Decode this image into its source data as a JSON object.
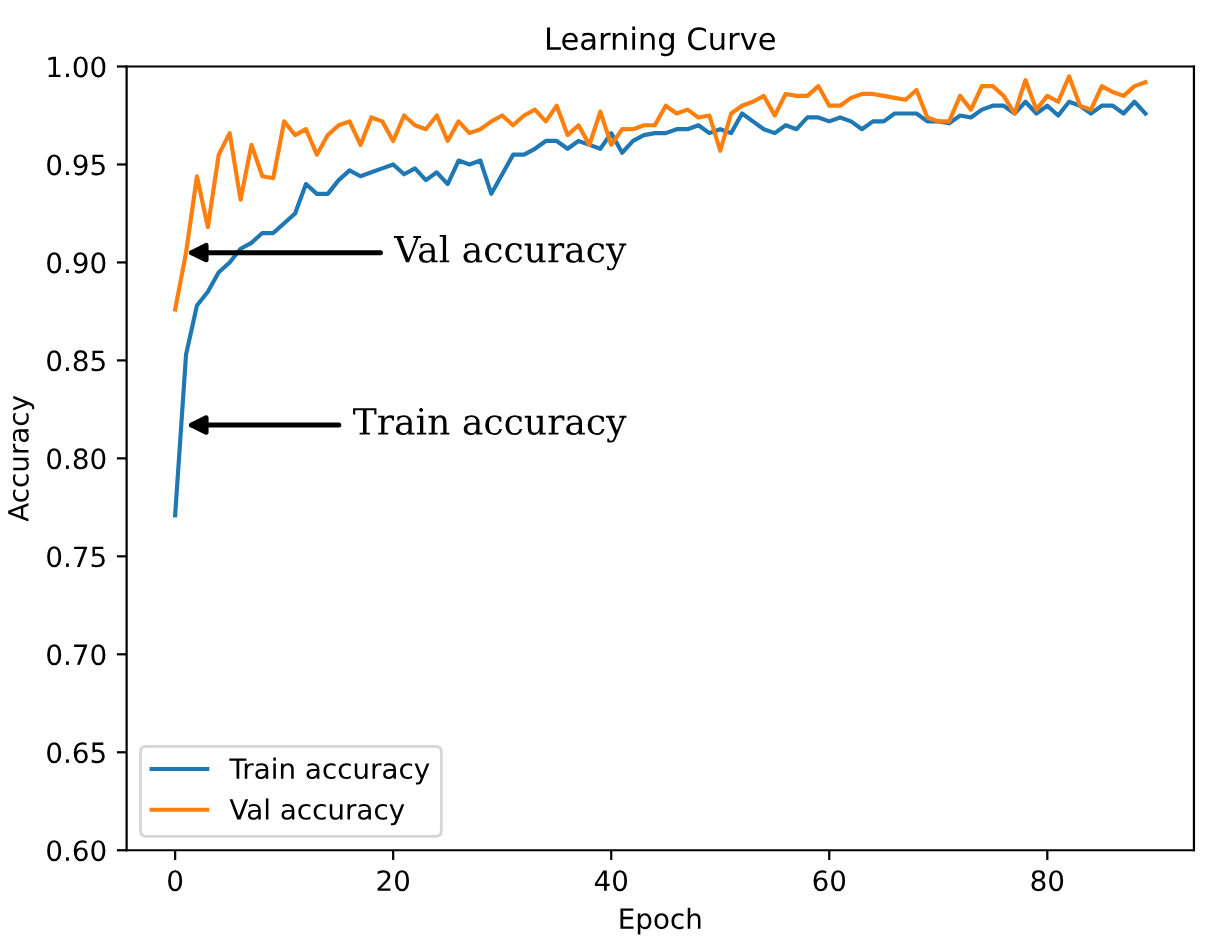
{
  "chart_data": {
    "type": "line",
    "title": "Learning Curve",
    "xlabel": "Epoch",
    "ylabel": "Accuracy",
    "x": [
      0,
      1,
      2,
      3,
      4,
      5,
      6,
      7,
      8,
      9,
      10,
      11,
      12,
      13,
      14,
      15,
      16,
      17,
      18,
      19,
      20,
      21,
      22,
      23,
      24,
      25,
      26,
      27,
      28,
      29,
      30,
      31,
      32,
      33,
      34,
      35,
      36,
      37,
      38,
      39,
      40,
      41,
      42,
      43,
      44,
      45,
      46,
      47,
      48,
      49,
      50,
      51,
      52,
      53,
      54,
      55,
      56,
      57,
      58,
      59,
      60,
      61,
      62,
      63,
      64,
      65,
      66,
      67,
      68,
      69,
      70,
      71,
      72,
      73,
      74,
      75,
      76,
      77,
      78,
      79,
      80,
      81,
      82,
      83,
      84,
      85,
      86,
      87,
      88,
      89
    ],
    "series": [
      {
        "name": "Train accuracy",
        "color": "#1f77b4",
        "values": [
          0.771,
          0.853,
          0.878,
          0.885,
          0.895,
          0.9,
          0.907,
          0.91,
          0.915,
          0.915,
          0.92,
          0.925,
          0.94,
          0.935,
          0.935,
          0.942,
          0.947,
          0.944,
          0.946,
          0.948,
          0.95,
          0.945,
          0.948,
          0.942,
          0.946,
          0.94,
          0.952,
          0.95,
          0.952,
          0.935,
          0.945,
          0.955,
          0.955,
          0.958,
          0.962,
          0.962,
          0.958,
          0.962,
          0.96,
          0.958,
          0.966,
          0.956,
          0.962,
          0.965,
          0.966,
          0.966,
          0.968,
          0.968,
          0.97,
          0.966,
          0.968,
          0.966,
          0.976,
          0.972,
          0.968,
          0.966,
          0.97,
          0.968,
          0.974,
          0.974,
          0.972,
          0.974,
          0.972,
          0.968,
          0.972,
          0.972,
          0.976,
          0.976,
          0.976,
          0.972,
          0.972,
          0.971,
          0.975,
          0.974,
          0.978,
          0.98,
          0.98,
          0.976,
          0.982,
          0.976,
          0.98,
          0.975,
          0.982,
          0.98,
          0.976,
          0.98,
          0.98,
          0.976,
          0.982,
          0.976
        ]
      },
      {
        "name": "Val accuracy",
        "color": "#ff7f0e",
        "values": [
          0.876,
          0.905,
          0.944,
          0.918,
          0.955,
          0.966,
          0.932,
          0.96,
          0.944,
          0.943,
          0.972,
          0.965,
          0.968,
          0.955,
          0.965,
          0.97,
          0.972,
          0.96,
          0.974,
          0.972,
          0.962,
          0.975,
          0.97,
          0.968,
          0.975,
          0.962,
          0.972,
          0.966,
          0.968,
          0.972,
          0.975,
          0.97,
          0.975,
          0.978,
          0.972,
          0.98,
          0.965,
          0.97,
          0.96,
          0.977,
          0.96,
          0.968,
          0.968,
          0.97,
          0.97,
          0.98,
          0.976,
          0.978,
          0.974,
          0.975,
          0.957,
          0.976,
          0.98,
          0.982,
          0.985,
          0.975,
          0.986,
          0.985,
          0.985,
          0.99,
          0.98,
          0.98,
          0.984,
          0.986,
          0.986,
          0.985,
          0.984,
          0.983,
          0.988,
          0.974,
          0.972,
          0.972,
          0.985,
          0.978,
          0.99,
          0.99,
          0.985,
          0.976,
          0.993,
          0.978,
          0.985,
          0.982,
          0.995,
          0.98,
          0.978,
          0.99,
          0.987,
          0.985,
          0.99,
          0.992
        ]
      }
    ],
    "annotations": [
      {
        "text": "Val accuracy",
        "x": 1,
        "y": 0.905
      },
      {
        "text": "Train accuracy",
        "x": 1,
        "y": 0.817
      }
    ],
    "xlim": [
      -4.45,
      93.45
    ],
    "xticks": [
      0,
      20,
      40,
      60,
      80
    ],
    "ylim": [
      0.6,
      1.0
    ],
    "yticks": [
      {
        "value": 0.6,
        "label": "0.60"
      },
      {
        "value": 0.65,
        "label": "0.65"
      },
      {
        "value": 0.7,
        "label": "0.70"
      },
      {
        "value": 0.75,
        "label": "0.75"
      },
      {
        "value": 0.8,
        "label": "0.80"
      },
      {
        "value": 0.85,
        "label": "0.85"
      },
      {
        "value": 0.9,
        "label": "0.90"
      },
      {
        "value": 0.95,
        "label": "0.95"
      },
      {
        "value": 1.0,
        "label": "1.00"
      }
    ],
    "grid": false,
    "legend": "bottom left",
    "marker": "none",
    "line_style": "solid"
  }
}
